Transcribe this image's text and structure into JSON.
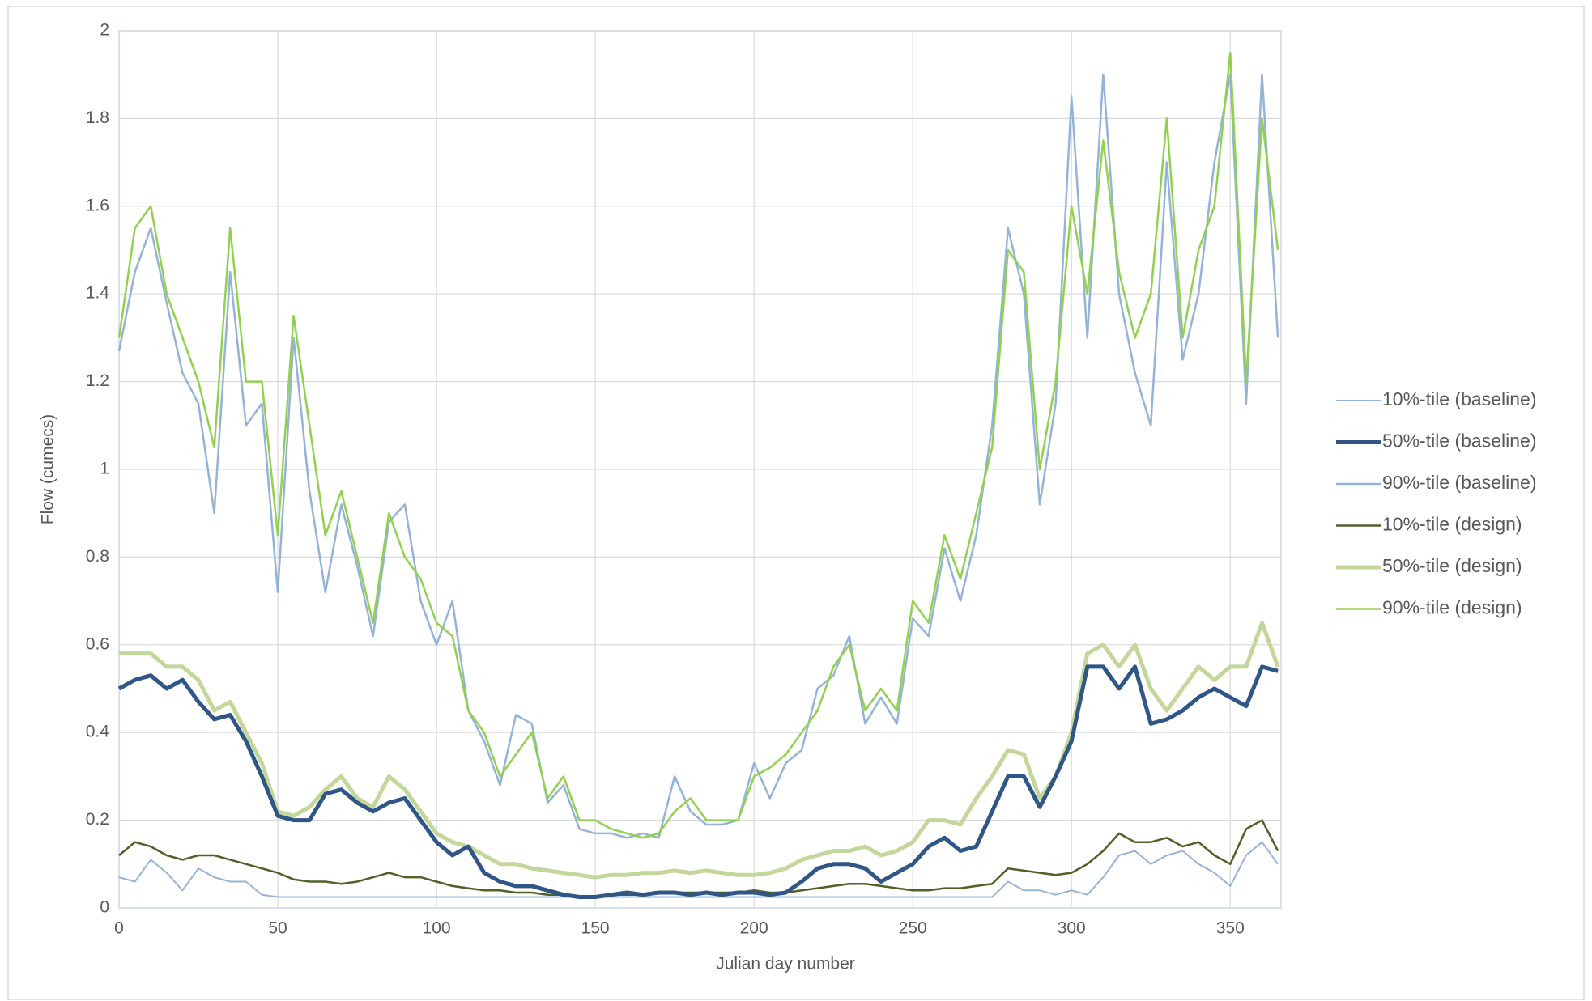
{
  "chart_data": {
    "type": "line",
    "xlabel": "Julian day number",
    "ylabel": "Flow (cumecs)",
    "xlim": [
      0,
      366
    ],
    "ylim": [
      0,
      2
    ],
    "xticks": [
      0,
      50,
      100,
      150,
      200,
      250,
      300,
      350
    ],
    "yticks": [
      0,
      0.2,
      0.4,
      0.6,
      0.8,
      1,
      1.2,
      1.4,
      1.6,
      1.8,
      2
    ],
    "grid": true,
    "legend": "right",
    "x": [
      0,
      5,
      10,
      15,
      20,
      25,
      30,
      35,
      40,
      45,
      50,
      55,
      60,
      65,
      70,
      75,
      80,
      85,
      90,
      95,
      100,
      105,
      110,
      115,
      120,
      125,
      130,
      135,
      140,
      145,
      150,
      155,
      160,
      165,
      170,
      175,
      180,
      185,
      190,
      195,
      200,
      205,
      210,
      215,
      220,
      225,
      230,
      235,
      240,
      245,
      250,
      255,
      260,
      265,
      270,
      275,
      280,
      285,
      290,
      295,
      300,
      305,
      310,
      315,
      320,
      325,
      330,
      335,
      340,
      345,
      350,
      355,
      360,
      365
    ],
    "series": [
      {
        "name": "10%-tile (baseline)",
        "color": "#95b3d7",
        "width": 2,
        "values": [
          0.07,
          0.06,
          0.11,
          0.08,
          0.04,
          0.09,
          0.07,
          0.06,
          0.06,
          0.03,
          0.025,
          0.025,
          0.025,
          0.025,
          0.025,
          0.025,
          0.025,
          0.025,
          0.025,
          0.025,
          0.025,
          0.025,
          0.025,
          0.025,
          0.025,
          0.025,
          0.025,
          0.025,
          0.025,
          0.025,
          0.025,
          0.025,
          0.025,
          0.025,
          0.025,
          0.025,
          0.025,
          0.025,
          0.025,
          0.025,
          0.025,
          0.025,
          0.025,
          0.025,
          0.025,
          0.025,
          0.025,
          0.025,
          0.025,
          0.025,
          0.025,
          0.025,
          0.025,
          0.025,
          0.025,
          0.025,
          0.06,
          0.04,
          0.04,
          0.03,
          0.04,
          0.03,
          0.07,
          0.12,
          0.13,
          0.1,
          0.12,
          0.13,
          0.1,
          0.08,
          0.05,
          0.12,
          0.15,
          0.1
        ]
      },
      {
        "name": "50%-tile (baseline)",
        "color": "#2f5686",
        "width": 5,
        "values": [
          0.5,
          0.52,
          0.53,
          0.5,
          0.52,
          0.47,
          0.43,
          0.44,
          0.38,
          0.3,
          0.21,
          0.2,
          0.2,
          0.26,
          0.27,
          0.24,
          0.22,
          0.24,
          0.25,
          0.2,
          0.15,
          0.12,
          0.14,
          0.08,
          0.06,
          0.05,
          0.05,
          0.04,
          0.03,
          0.025,
          0.025,
          0.03,
          0.035,
          0.03,
          0.035,
          0.035,
          0.03,
          0.035,
          0.03,
          0.035,
          0.035,
          0.03,
          0.035,
          0.06,
          0.09,
          0.1,
          0.1,
          0.09,
          0.06,
          0.08,
          0.1,
          0.14,
          0.16,
          0.13,
          0.14,
          0.22,
          0.3,
          0.3,
          0.23,
          0.3,
          0.38,
          0.55,
          0.55,
          0.5,
          0.55,
          0.42,
          0.43,
          0.45,
          0.48,
          0.5,
          0.48,
          0.46,
          0.55,
          0.54
        ]
      },
      {
        "name": "90%-tile (baseline)",
        "color": "#95b3d7",
        "width": 2.5,
        "values": [
          1.27,
          1.45,
          1.55,
          1.38,
          1.22,
          1.15,
          0.9,
          1.45,
          1.1,
          1.15,
          0.72,
          1.3,
          0.95,
          0.72,
          0.92,
          0.78,
          0.62,
          0.88,
          0.92,
          0.7,
          0.6,
          0.7,
          0.45,
          0.38,
          0.28,
          0.44,
          0.42,
          0.24,
          0.28,
          0.18,
          0.17,
          0.17,
          0.16,
          0.17,
          0.16,
          0.3,
          0.22,
          0.19,
          0.19,
          0.2,
          0.33,
          0.25,
          0.33,
          0.36,
          0.5,
          0.53,
          0.62,
          0.42,
          0.48,
          0.42,
          0.66,
          0.62,
          0.82,
          0.7,
          0.85,
          1.1,
          1.55,
          1.4,
          0.92,
          1.15,
          1.85,
          1.3,
          1.9,
          1.4,
          1.22,
          1.1,
          1.7,
          1.25,
          1.4,
          1.7,
          1.9,
          1.15,
          1.9,
          1.3
        ]
      },
      {
        "name": "10%-tile (design)",
        "color": "#4f6228",
        "width": 2.5,
        "values": [
          0.12,
          0.15,
          0.14,
          0.12,
          0.11,
          0.12,
          0.12,
          0.11,
          0.1,
          0.09,
          0.08,
          0.065,
          0.06,
          0.06,
          0.055,
          0.06,
          0.07,
          0.08,
          0.07,
          0.07,
          0.06,
          0.05,
          0.045,
          0.04,
          0.04,
          0.035,
          0.035,
          0.03,
          0.03,
          0.025,
          0.025,
          0.03,
          0.03,
          0.03,
          0.035,
          0.035,
          0.035,
          0.035,
          0.035,
          0.035,
          0.04,
          0.035,
          0.035,
          0.04,
          0.045,
          0.05,
          0.055,
          0.055,
          0.05,
          0.045,
          0.04,
          0.04,
          0.045,
          0.045,
          0.05,
          0.055,
          0.09,
          0.085,
          0.08,
          0.075,
          0.08,
          0.1,
          0.13,
          0.17,
          0.15,
          0.15,
          0.16,
          0.14,
          0.15,
          0.12,
          0.1,
          0.18,
          0.2,
          0.13
        ]
      },
      {
        "name": "50%-tile (design)",
        "color": "#c4d79b",
        "width": 5,
        "values": [
          0.58,
          0.58,
          0.58,
          0.55,
          0.55,
          0.52,
          0.45,
          0.47,
          0.4,
          0.33,
          0.22,
          0.21,
          0.23,
          0.27,
          0.3,
          0.25,
          0.23,
          0.3,
          0.27,
          0.22,
          0.17,
          0.15,
          0.14,
          0.12,
          0.1,
          0.1,
          0.09,
          0.085,
          0.08,
          0.075,
          0.07,
          0.075,
          0.075,
          0.08,
          0.08,
          0.085,
          0.08,
          0.085,
          0.08,
          0.075,
          0.075,
          0.08,
          0.09,
          0.11,
          0.12,
          0.13,
          0.13,
          0.14,
          0.12,
          0.13,
          0.15,
          0.2,
          0.2,
          0.19,
          0.25,
          0.3,
          0.36,
          0.35,
          0.25,
          0.3,
          0.4,
          0.58,
          0.6,
          0.55,
          0.6,
          0.5,
          0.45,
          0.5,
          0.55,
          0.52,
          0.55,
          0.55,
          0.65,
          0.55
        ]
      },
      {
        "name": "90%-tile (design)",
        "color": "#92d050",
        "width": 2.5,
        "values": [
          1.3,
          1.55,
          1.6,
          1.4,
          1.3,
          1.2,
          1.05,
          1.55,
          1.2,
          1.2,
          0.85,
          1.35,
          1.1,
          0.85,
          0.95,
          0.8,
          0.65,
          0.9,
          0.8,
          0.75,
          0.65,
          0.62,
          0.45,
          0.4,
          0.3,
          0.35,
          0.4,
          0.25,
          0.3,
          0.2,
          0.2,
          0.18,
          0.17,
          0.16,
          0.17,
          0.22,
          0.25,
          0.2,
          0.2,
          0.2,
          0.3,
          0.32,
          0.35,
          0.4,
          0.45,
          0.55,
          0.6,
          0.45,
          0.5,
          0.45,
          0.7,
          0.65,
          0.85,
          0.75,
          0.9,
          1.05,
          1.5,
          1.45,
          1.0,
          1.2,
          1.6,
          1.4,
          1.75,
          1.45,
          1.3,
          1.4,
          1.8,
          1.3,
          1.5,
          1.6,
          1.95,
          1.2,
          1.8,
          1.5
        ]
      }
    ]
  }
}
